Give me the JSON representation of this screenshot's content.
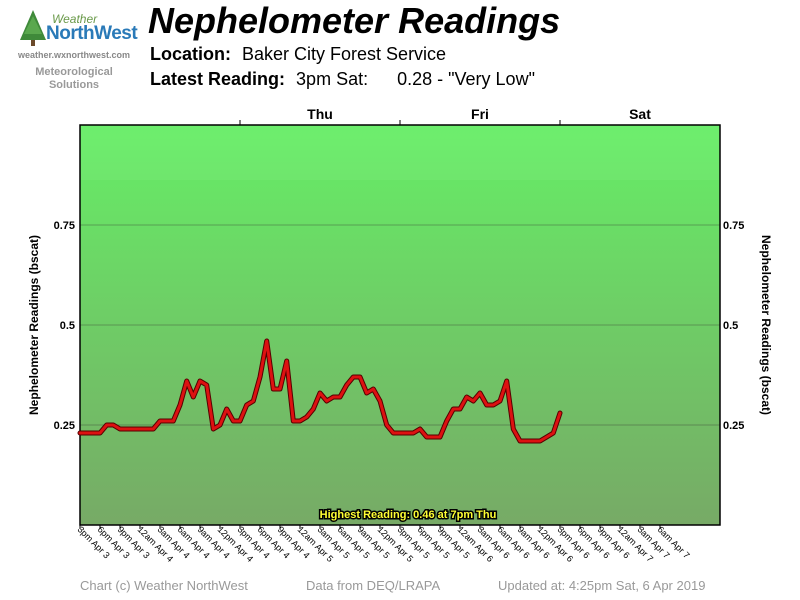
{
  "brand": {
    "logo_word_1": "Weather",
    "logo_word_2": "NorthWest",
    "url": "weather.wxnorthwest.com",
    "subtitle_1": "Meteorological",
    "subtitle_2": "Solutions"
  },
  "header": {
    "title": "Nephelometer Readings",
    "location_label": "Location:",
    "location_value": "Baker City Forest Service",
    "latest_label": "Latest Reading:",
    "latest_time": "3pm Sat:",
    "latest_value": "0.28 - \"Very Low\""
  },
  "footer": {
    "copyright": "Chart (c) Weather NorthWest",
    "source": "Data from DEQ/LRAPA",
    "updated": "Updated at: 4:25pm Sat, 6 Apr 2019"
  },
  "colors": {
    "line": "#dd1111",
    "gradient_top": "#66ee66",
    "gradient_bottom": "#77aa66"
  },
  "chart_data": {
    "type": "line",
    "title": "Nephelometer Readings",
    "ylabel": "Nephelometer Readings (bscat)",
    "ylim": [
      0,
      1.0
    ],
    "yticks": [
      0.25,
      0.5,
      0.75
    ],
    "ytick_labels": [
      "0.25",
      "0.5",
      "0.75"
    ],
    "grid": true,
    "day_labels": [
      {
        "label": "Thu",
        "hour": 36
      },
      {
        "label": "Fri",
        "hour": 60
      },
      {
        "label": "Sat",
        "hour": 84
      }
    ],
    "x_tick_labels": [
      "3pm Apr 3",
      "6pm Apr 3",
      "9pm Apr 3",
      "12am Apr 4",
      "3am Apr 4",
      "6am Apr 4",
      "9am Apr 4",
      "12pm Apr 4",
      "3pm Apr 4",
      "6pm Apr 4",
      "9pm Apr 4",
      "12am Apr 5",
      "3am Apr 5",
      "6am Apr 5",
      "9am Apr 5",
      "12pm Apr 5",
      "3pm Apr 5",
      "6pm Apr 5",
      "9pm Apr 5",
      "12am Apr 6",
      "3am Apr 6",
      "6am Apr 6",
      "9am Apr 6",
      "12pm Apr 6",
      "3pm Apr 6",
      "6pm Apr 6",
      "9pm Apr 6",
      "12am Apr 7",
      "3am Apr 7",
      "6am Apr 7"
    ],
    "annotation": "Highest Reading: 0.46 at 7pm Thu",
    "series": [
      {
        "hours": [
          0,
          1,
          2,
          3,
          4,
          5,
          6,
          7,
          8,
          9,
          10,
          11,
          12,
          13,
          14,
          15,
          16,
          17,
          18,
          19,
          20,
          21,
          22,
          23,
          24,
          25,
          26,
          27,
          28,
          29,
          30,
          31,
          32,
          33,
          34,
          35,
          36,
          37,
          38,
          39,
          40,
          41,
          42,
          43,
          44,
          45,
          46,
          47,
          48,
          49,
          50,
          51,
          52,
          53,
          54,
          55,
          56,
          57,
          58,
          59,
          60,
          61,
          62,
          63,
          64,
          65,
          66,
          67,
          68,
          69,
          70,
          71,
          72,
          73,
          74,
          75,
          76,
          77,
          78,
          79,
          80,
          81,
          82,
          83,
          84,
          85,
          86,
          87,
          88,
          89,
          90,
          91,
          92,
          93,
          94,
          95,
          96
        ],
        "values": [
          0.23,
          0.23,
          0.23,
          0.23,
          0.25,
          0.25,
          0.24,
          0.24,
          0.24,
          0.24,
          0.24,
          0.24,
          0.26,
          0.26,
          0.26,
          0.3,
          0.36,
          0.32,
          0.36,
          0.35,
          0.24,
          0.25,
          0.29,
          0.26,
          0.26,
          0.3,
          0.31,
          0.37,
          0.46,
          0.34,
          0.34,
          0.41,
          0.26,
          0.26,
          0.27,
          0.29,
          0.33,
          0.31,
          0.32,
          0.32,
          0.35,
          0.37,
          0.37,
          0.33,
          0.34,
          0.31,
          0.25,
          0.23,
          0.23,
          0.23,
          0.23,
          0.24,
          0.22,
          0.22,
          0.22,
          0.26,
          0.29,
          0.29,
          0.32,
          0.31,
          0.33,
          0.3,
          0.3,
          0.31,
          0.36,
          0.24,
          0.21,
          0.21,
          0.21,
          0.21,
          0.22,
          0.23,
          0.28,
          null,
          null,
          null,
          null,
          null,
          null,
          null,
          null,
          null,
          null,
          null,
          null,
          null,
          null,
          null,
          null,
          null,
          null,
          null,
          null,
          null,
          null,
          null,
          null
        ]
      }
    ]
  }
}
